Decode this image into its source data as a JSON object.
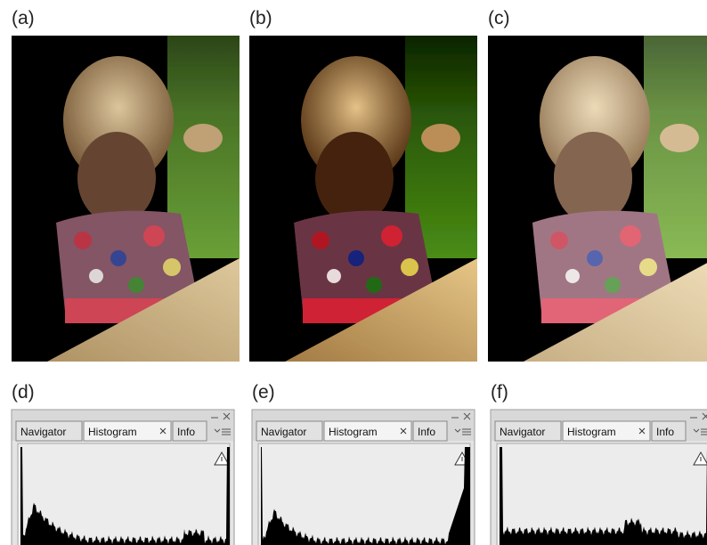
{
  "photo_panels": [
    {
      "label": "(a)"
    },
    {
      "label": "(b)"
    },
    {
      "label": "(c)"
    }
  ],
  "histogram_panels": [
    {
      "label": "(d)",
      "tabs": [
        "Navigator",
        "Histogram",
        "Info"
      ]
    },
    {
      "label": "(e)",
      "tabs": [
        "Navigator",
        "Histogram",
        "Info"
      ]
    },
    {
      "label": "(f)",
      "tabs": [
        "Navigator",
        "Histogram",
        "Info"
      ]
    }
  ]
}
